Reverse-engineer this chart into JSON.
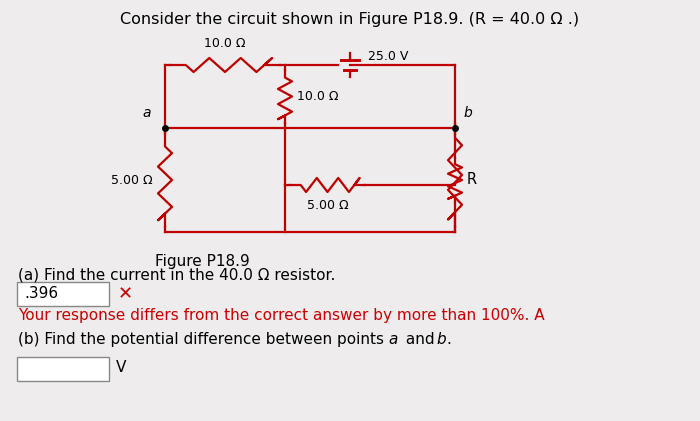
{
  "title": "Consider the circuit shown in Figure P18.9. (R = 40.0 Ω .)",
  "figure_label": "Figure P18.9",
  "part_a_text": "(a) Find the current in the 40.0 Ω resistor.",
  "answer_a": ".396",
  "error_msg": "Your response differs from the correct answer by more than 100%. A",
  "part_b_text": "(b) Find the potential difference between points α and β.",
  "unit_b": "V",
  "bg_color": "#eeecec",
  "circuit_color": "#c00000",
  "text_color": "#000000",
  "red_text_color": "#cc0000",
  "res_top": "10.0 Ω",
  "res_mid": "10.0 Ω",
  "res_left": "5.00 Ω",
  "res_bot": "5.00 Ω",
  "res_right": "R",
  "battery_label": "25.0 V",
  "node_a": "a",
  "node_b": "b"
}
